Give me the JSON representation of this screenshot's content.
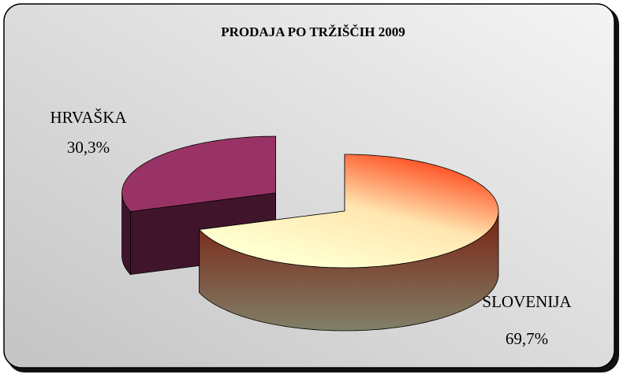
{
  "chart_data": {
    "type": "pie3d",
    "title": "PRODAJA PO TRŽIŠČIH 2009",
    "categories": [
      "SLOVENIJA",
      "HRVAŠKA"
    ],
    "values": [
      69.7,
      30.3
    ],
    "value_labels": [
      "69,7%",
      "30,3%"
    ],
    "colors": [
      "#ff2a00",
      "#993366"
    ]
  }
}
